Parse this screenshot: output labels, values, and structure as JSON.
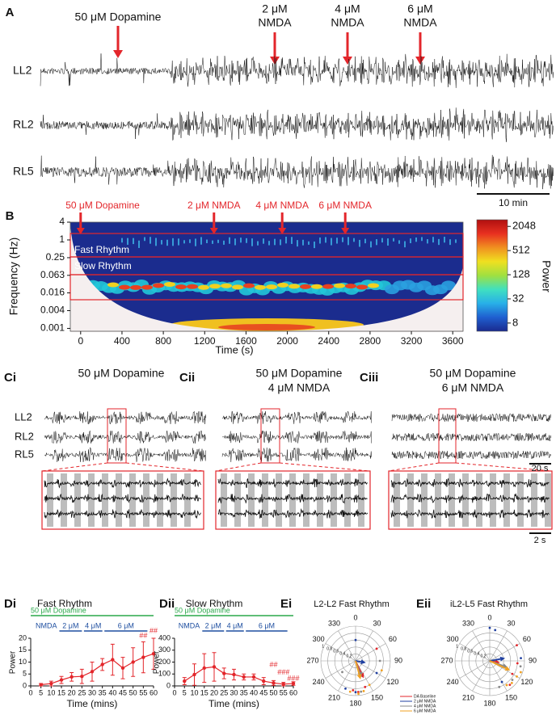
{
  "panel_a": {
    "label": "A",
    "events": [
      {
        "lines": [
          "50 μM Dopamine"
        ]
      },
      {
        "lines": [
          "2 μM",
          "NMDA"
        ]
      },
      {
        "lines": [
          "4 μM",
          "NMDA"
        ]
      },
      {
        "lines": [
          "6 μM",
          "NMDA"
        ]
      }
    ],
    "traces": [
      "LL2",
      "RL2",
      "RL5"
    ],
    "scale_bar": "10 min"
  },
  "panel_c": {
    "panels": [
      {
        "label": "Ci",
        "title": [
          "50 μM Dopamine"
        ]
      },
      {
        "label": "Cii",
        "title": [
          "50 μM Dopamine",
          "4 μM NMDA"
        ]
      },
      {
        "label": "Ciii",
        "title": [
          "50 μM Dopamine",
          "6 μM NMDA"
        ]
      }
    ],
    "traces": [
      "LL2",
      "RL2",
      "RL5"
    ],
    "scale_bars": [
      "20 s",
      "2 s"
    ]
  },
  "chart_data": [
    {
      "label": "B",
      "type": "spectrogram",
      "xlabel": "Time (s)",
      "ylabel": "Frequency (Hz)",
      "colorbar_label": "Power",
      "xlim": [
        -100,
        3700
      ],
      "xticks": [
        0,
        400,
        800,
        1200,
        1600,
        2000,
        2400,
        2800,
        3200,
        3600
      ],
      "ylim": [
        0.0008,
        4
      ],
      "log_y": true,
      "yticks": [
        4,
        1,
        0.25,
        0.063,
        0.016,
        0.004,
        0.001
      ],
      "colorbar_lim": [
        5,
        3000
      ],
      "colorbar_ticks": [
        8,
        32,
        128,
        512,
        2048
      ],
      "bands": [
        "Fast Rhythm",
        "Slow Rhythm"
      ],
      "events": [
        {
          "time": 0,
          "label": "50 μM Dopamine"
        },
        {
          "time": 1290,
          "label": "2 μM NMDA"
        },
        {
          "time": 1950,
          "label": "4 μM NMDA"
        },
        {
          "time": 2560,
          "label": "6 μM NMDA"
        }
      ]
    },
    {
      "label": "Di",
      "type": "line",
      "title": "Fast Rhythm",
      "xlabel": "Time (mins)",
      "ylabel": "Power",
      "x": [
        5,
        10,
        15,
        20,
        25,
        30,
        35,
        40,
        45,
        50,
        55,
        60
      ],
      "series": [
        {
          "color": "#e3262b",
          "values": [
            0.5,
            1,
            2.5,
            3.8,
            4,
            6,
            9,
            11,
            7.5,
            10,
            12,
            13.5
          ],
          "errors": [
            0.5,
            1,
            1.5,
            1.8,
            3,
            4,
            2.5,
            6.5,
            4.5,
            6,
            6.5,
            6.5
          ]
        }
      ],
      "xlim": [
        0,
        60
      ],
      "xticks": [
        0,
        5,
        10,
        15,
        20,
        25,
        30,
        35,
        40,
        45,
        50,
        55,
        60
      ],
      "ylim": [
        0,
        20
      ],
      "yticks": [
        0,
        5,
        10,
        15,
        20
      ],
      "treatments": [
        {
          "label": "50 μM Dopamine",
          "start": 0,
          "end": 60,
          "color": "#2aa84a"
        },
        {
          "label": "NMDA",
          "color": "#1f4fa0"
        },
        {
          "label": "2 μM",
          "start": 14,
          "end": 25,
          "color": "#1f4fa0"
        },
        {
          "label": "4 μM",
          "start": 26,
          "end": 35,
          "color": "#1f4fa0"
        },
        {
          "label": "6 μM",
          "start": 36,
          "end": 57,
          "color": "#1f4fa0"
        }
      ],
      "annotations": [
        {
          "x": 55,
          "y": 21,
          "text": "##"
        },
        {
          "x": 60,
          "y": 23,
          "text": "##"
        }
      ]
    },
    {
      "label": "Dii",
      "type": "line",
      "title": "Slow Rhythm",
      "xlabel": "Time (mins)",
      "ylabel": "Power",
      "x": [
        5,
        10,
        15,
        20,
        25,
        30,
        35,
        40,
        45,
        50,
        55,
        60
      ],
      "series": [
        {
          "color": "#e3262b",
          "values": [
            40,
            95,
            150,
            160,
            105,
            95,
            75,
            75,
            40,
            25,
            15,
            20
          ],
          "errors": [
            30,
            90,
            120,
            120,
            45,
            45,
            25,
            25,
            30,
            20,
            15,
            15
          ]
        }
      ],
      "xlim": [
        0,
        60
      ],
      "xticks": [
        0,
        5,
        10,
        15,
        20,
        25,
        30,
        35,
        40,
        45,
        50,
        55,
        60
      ],
      "ylim": [
        0,
        400
      ],
      "yticks": [
        0,
        100,
        200,
        300,
        400
      ],
      "treatments": [
        {
          "label": "50 μM Dopamine",
          "start": 0,
          "end": 60,
          "color": "#2aa84a"
        },
        {
          "label": "NMDA",
          "color": "#1f4fa0"
        },
        {
          "label": "2 μM",
          "start": 14,
          "end": 25,
          "color": "#1f4fa0"
        },
        {
          "label": "4 μM",
          "start": 26,
          "end": 35,
          "color": "#1f4fa0"
        },
        {
          "label": "6 μM",
          "start": 36,
          "end": 57,
          "color": "#1f4fa0"
        }
      ],
      "annotations": [
        {
          "x": 50,
          "y": 175,
          "text": "##"
        },
        {
          "x": 55,
          "y": 110,
          "text": "###"
        },
        {
          "x": 60,
          "y": 60,
          "text": "###"
        }
      ]
    },
    {
      "label": "Ei",
      "type": "polar",
      "title": "L2-L2 Fast Rhythm",
      "theta_ticks": [
        0,
        30,
        60,
        90,
        120,
        150,
        180,
        210,
        240,
        270,
        300,
        330
      ],
      "rlim": [
        0,
        1
      ],
      "r_ticks": [
        0.2,
        0.4,
        0.6,
        0.8,
        1
      ],
      "legend": true,
      "series": [
        {
          "name": "DA Baseline",
          "color": "#e3262b",
          "arrow": {
            "angle": 155,
            "length": 0.55
          },
          "points": [
            [
              175,
              0.9
            ],
            [
              185,
              0.85
            ],
            [
              160,
              0.8
            ],
            [
              60,
              0.7
            ]
          ]
        },
        {
          "name": "2 μM NMDA",
          "color": "#1f3fa0",
          "arrow": {
            "angle": 100,
            "length": 0.3
          },
          "points": [
            [
              0,
              0.6
            ],
            [
              180,
              0.9
            ],
            [
              200,
              0.85
            ],
            [
              120,
              0.7
            ]
          ]
        },
        {
          "name": "4 μM NMDA",
          "color": "#888888",
          "arrow": {
            "angle": 160,
            "length": 0.5
          },
          "points": [
            [
              90,
              0.7
            ],
            [
              170,
              0.9
            ],
            [
              230,
              0.5
            ]
          ]
        },
        {
          "name": "6 μM NMDA",
          "color": "#f0a020",
          "arrow": {
            "angle": 165,
            "length": 0.55
          },
          "points": [
            [
              165,
              0.9
            ],
            [
              175,
              0.95
            ],
            [
              190,
              0.9
            ],
            [
              150,
              0.8
            ],
            [
              110,
              0.8
            ]
          ]
        }
      ]
    },
    {
      "label": "Eii",
      "type": "polar",
      "title": "iL2-L5 Fast Rhythm",
      "theta_ticks": [
        0,
        30,
        60,
        90,
        120,
        150,
        180,
        210,
        240,
        270,
        300,
        330
      ],
      "rlim": [
        0,
        1
      ],
      "r_ticks": [
        0.2,
        0.4,
        0.6,
        0.8,
        1
      ],
      "legend": false,
      "series": [
        {
          "color": "#e3262b",
          "arrow": {
            "angle": 100,
            "length": 0.3
          },
          "points": [
            [
              95,
              0.8
            ],
            [
              120,
              0.75
            ],
            [
              60,
              0.9
            ],
            [
              140,
              0.9
            ]
          ]
        },
        {
          "color": "#1f3fa0",
          "arrow": {
            "angle": 80,
            "length": 0.45
          },
          "points": [
            [
              0,
              0.95
            ],
            [
              10,
              0.9
            ],
            [
              150,
              0.7
            ],
            [
              85,
              0.9
            ]
          ]
        },
        {
          "color": "#888888",
          "arrow": {
            "angle": 110,
            "length": 0.55
          },
          "points": [
            [
              100,
              0.9
            ],
            [
              130,
              0.85
            ],
            [
              160,
              0.8
            ]
          ]
        },
        {
          "color": "#f0a020",
          "arrow": {
            "angle": 115,
            "length": 0.65
          },
          "points": [
            [
              110,
              0.95
            ],
            [
              120,
              0.9
            ],
            [
              135,
              0.9
            ],
            [
              145,
              0.85
            ]
          ]
        }
      ]
    }
  ]
}
